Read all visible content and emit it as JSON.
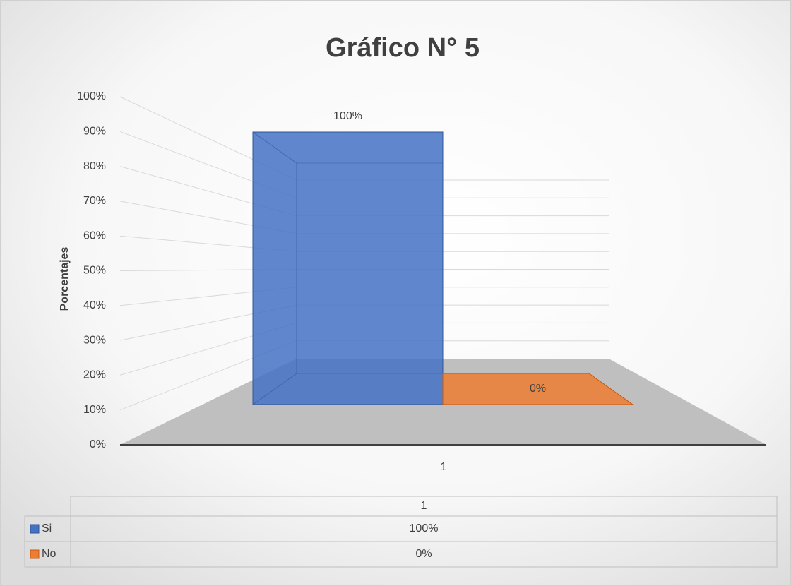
{
  "chart_data": {
    "type": "bar3d",
    "title": "Gráfico N° 5",
    "y_label": "Porcentajes",
    "categories": [
      "1"
    ],
    "series": [
      {
        "name": "Si",
        "color": "#4472c4",
        "values": [
          100
        ],
        "value_labels": [
          "100%"
        ]
      },
      {
        "name": "No",
        "color": "#ed7d31",
        "values": [
          0
        ],
        "value_labels": [
          "0%"
        ]
      }
    ],
    "ylim": [
      0,
      100
    ],
    "yticks": [
      {
        "value": 0,
        "label": "0%"
      },
      {
        "value": 10,
        "label": "10%"
      },
      {
        "value": 20,
        "label": "20%"
      },
      {
        "value": 30,
        "label": "30%"
      },
      {
        "value": 40,
        "label": "40%"
      },
      {
        "value": 50,
        "label": "50%"
      },
      {
        "value": 60,
        "label": "60%"
      },
      {
        "value": 70,
        "label": "70%"
      },
      {
        "value": 80,
        "label": "80%"
      },
      {
        "value": 90,
        "label": "90%"
      },
      {
        "value": 100,
        "label": "100%"
      }
    ],
    "grid": true,
    "data_table": true
  }
}
